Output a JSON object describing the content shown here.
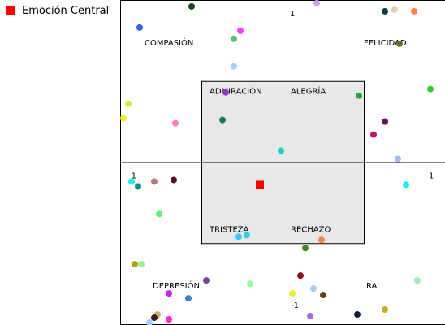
{
  "legend": {
    "label": "Emoción Central",
    "color": "#ff0000"
  },
  "chart_data": {
    "type": "scatter",
    "xlim": [
      -1,
      1
    ],
    "ylim": [
      -1,
      1
    ],
    "grid": false,
    "legend_position": "top-left",
    "tick_labels": {
      "x_min": "-1",
      "x_max": "1",
      "y_min": "-1",
      "y_max": "1"
    },
    "zones": [
      {
        "label": "COMPASIÓN",
        "x": -0.85,
        "y": 0.72
      },
      {
        "label": "FELICIDAD",
        "x": 0.5,
        "y": 0.72
      },
      {
        "label": "ADMIRACIÓN",
        "x": -0.45,
        "y": 0.42
      },
      {
        "label": "ALEGRÍA",
        "x": 0.05,
        "y": 0.42
      },
      {
        "label": "TRISTEZA",
        "x": -0.45,
        "y": -0.43
      },
      {
        "label": "RECHAZO",
        "x": 0.05,
        "y": -0.43
      },
      {
        "label": "DEPRESIÓN",
        "x": -0.8,
        "y": -0.78
      },
      {
        "label": "IRA",
        "x": 0.5,
        "y": -0.78
      }
    ],
    "central_zone": {
      "x": [
        -0.5,
        0.5
      ],
      "y": [
        -0.5,
        0.5
      ],
      "color": "#e8e8e8"
    },
    "central_emotion": {
      "x": -0.14,
      "y": -0.14,
      "color": "#ff0000"
    },
    "points": [
      {
        "x": -0.56,
        "y": 0.96,
        "color": "#1a4a1a"
      },
      {
        "x": 0.21,
        "y": 0.98,
        "color": "#c9a6e8"
      },
      {
        "x": 0.63,
        "y": 0.93,
        "color": "#0d4040"
      },
      {
        "x": 0.69,
        "y": 0.94,
        "color": "#e6cfa6"
      },
      {
        "x": 0.81,
        "y": 0.93,
        "color": "#ff7f3f"
      },
      {
        "x": -0.88,
        "y": 0.83,
        "color": "#2f5fff"
      },
      {
        "x": -0.26,
        "y": 0.81,
        "color": "#ff33ff"
      },
      {
        "x": -0.3,
        "y": 0.76,
        "color": "#4fc36f"
      },
      {
        "x": 0.72,
        "y": 0.73,
        "color": "#6b6b12"
      },
      {
        "x": -0.3,
        "y": 0.59,
        "color": "#a6ccff"
      },
      {
        "x": 0.91,
        "y": 0.45,
        "color": "#33cc33"
      },
      {
        "x": -0.35,
        "y": 0.43,
        "color": "#9933cc"
      },
      {
        "x": 0.47,
        "y": 0.41,
        "color": "#22aa22"
      },
      {
        "x": -0.95,
        "y": 0.36,
        "color": "#ccee33"
      },
      {
        "x": -0.37,
        "y": 0.26,
        "color": "#1a7a6a"
      },
      {
        "x": -0.98,
        "y": 0.27,
        "color": "#eeee22"
      },
      {
        "x": -0.66,
        "y": 0.24,
        "color": "#ff7fb0"
      },
      {
        "x": 0.63,
        "y": 0.25,
        "color": "#660f66"
      },
      {
        "x": 0.56,
        "y": 0.17,
        "color": "#cc0f66"
      },
      {
        "x": -0.01,
        "y": 0.07,
        "color": "#22cccc"
      },
      {
        "x": 0.71,
        "y": 0.02,
        "color": "#a6bfea"
      },
      {
        "x": -0.67,
        "y": -0.11,
        "color": "#5a0f1a"
      },
      {
        "x": -0.79,
        "y": -0.12,
        "color": "#b37a7a"
      },
      {
        "x": -0.93,
        "y": -0.12,
        "color": "#22eeee"
      },
      {
        "x": -0.89,
        "y": -0.15,
        "color": "#1a8a8a"
      },
      {
        "x": 0.76,
        "y": -0.14,
        "color": "#22eeee"
      },
      {
        "x": -0.76,
        "y": -0.32,
        "color": "#66ee66"
      },
      {
        "x": -0.27,
        "y": -0.46,
        "color": "#33ccff"
      },
      {
        "x": -0.22,
        "y": -0.45,
        "color": "#33ccee"
      },
      {
        "x": 0.24,
        "y": -0.48,
        "color": "#ff7f3f"
      },
      {
        "x": 0.14,
        "y": -0.53,
        "color": "#3f8a1a"
      },
      {
        "x": -0.91,
        "y": -0.63,
        "color": "#a6a612"
      },
      {
        "x": -0.87,
        "y": -0.63,
        "color": "#99ee99"
      },
      {
        "x": 0.11,
        "y": -0.7,
        "color": "#990f0f"
      },
      {
        "x": -0.47,
        "y": -0.73,
        "color": "#7f3f9f"
      },
      {
        "x": -0.2,
        "y": -0.75,
        "color": "#99ff99"
      },
      {
        "x": 0.83,
        "y": -0.73,
        "color": "#99eebb"
      },
      {
        "x": 0.19,
        "y": -0.78,
        "color": "#a6ccee"
      },
      {
        "x": -0.7,
        "y": -0.81,
        "color": "#cc22ee"
      },
      {
        "x": -0.58,
        "y": -0.84,
        "color": "#3f7fcc"
      },
      {
        "x": 0.06,
        "y": -0.81,
        "color": "#eeee22"
      },
      {
        "x": 0.25,
        "y": -0.82,
        "color": "#6b3f12"
      },
      {
        "x": 0.63,
        "y": -0.91,
        "color": "#ccaa22"
      },
      {
        "x": -0.77,
        "y": -0.94,
        "color": "#ccaa66"
      },
      {
        "x": -0.79,
        "y": -0.96,
        "color": "#3f1a1a"
      },
      {
        "x": 0.17,
        "y": -0.95,
        "color": "#aa66ee"
      },
      {
        "x": 0.46,
        "y": -0.94,
        "color": "#0f1a3f"
      },
      {
        "x": -0.7,
        "y": -0.97,
        "color": "#ff22cc"
      },
      {
        "x": -0.82,
        "y": -0.99,
        "color": "#a6ccff"
      }
    ]
  }
}
